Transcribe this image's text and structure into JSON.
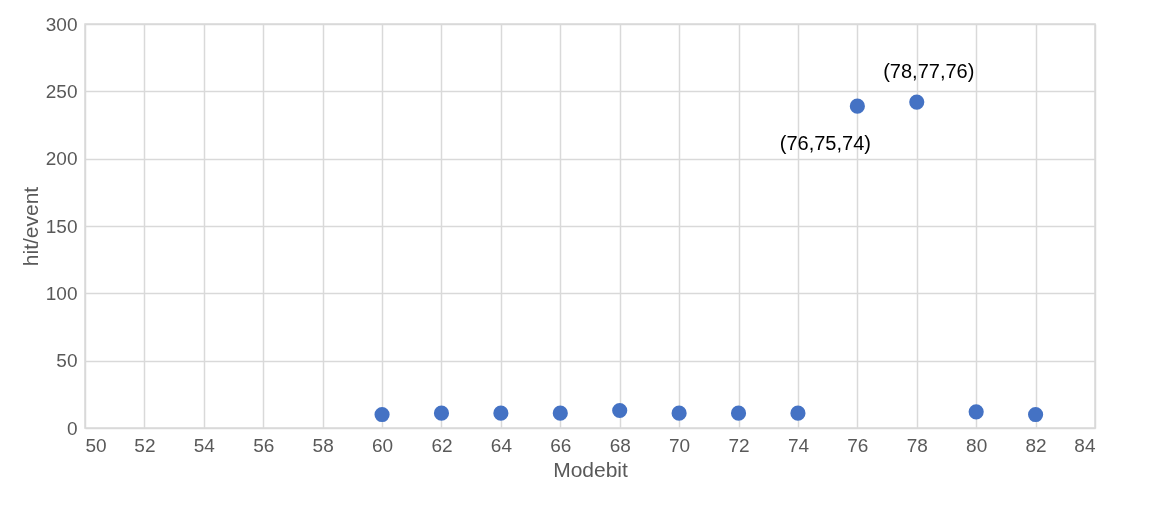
{
  "chart_data": {
    "type": "scatter",
    "xlabel": "Modebit",
    "ylabel": "hit/event",
    "x": [
      60,
      62,
      64,
      66,
      68,
      70,
      72,
      74,
      76,
      78,
      80,
      82
    ],
    "series": [
      {
        "color": "#4472c4",
        "values": [
          10,
          11,
          11,
          11,
          13,
          11,
          11,
          11,
          239,
          242,
          12,
          10
        ]
      }
    ],
    "xlim": [
      50,
      84
    ],
    "xticks": [
      50,
      52,
      54,
      56,
      58,
      60,
      62,
      64,
      66,
      68,
      70,
      72,
      74,
      76,
      78,
      80,
      82,
      84
    ],
    "ylim": [
      0,
      300
    ],
    "yticks": [
      0,
      50,
      100,
      150,
      200,
      250,
      300
    ],
    "grid": true,
    "marker": "circle",
    "annotations": [
      {
        "text": "(76,75,74)",
        "x": 76,
        "y": 239
      },
      {
        "text": "(78,77,76)",
        "x": 78,
        "y": 242
      }
    ]
  }
}
